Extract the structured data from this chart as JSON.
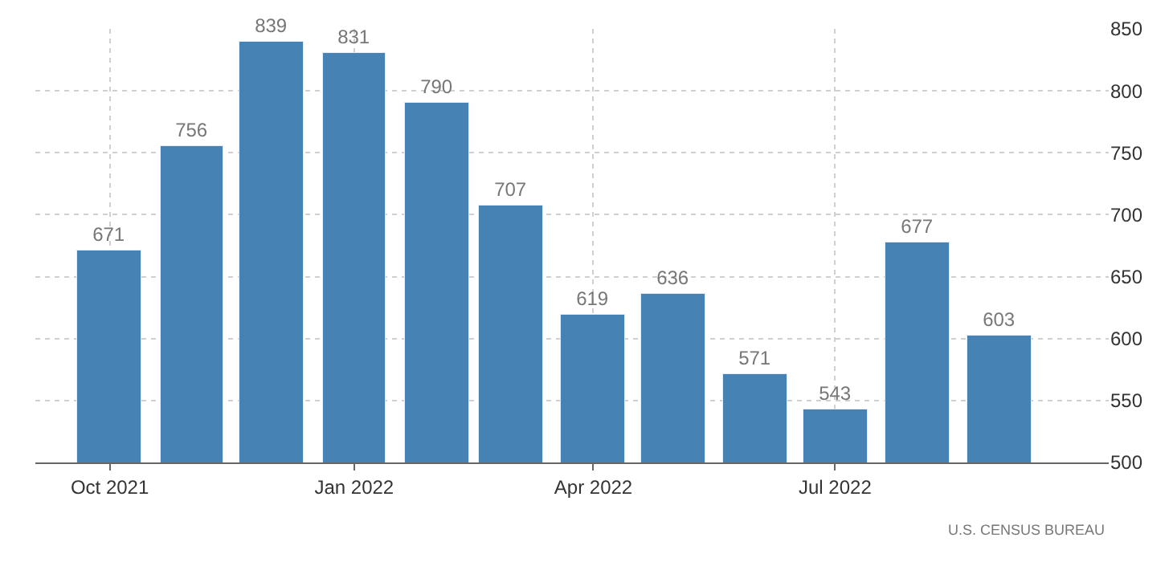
{
  "chart_data": {
    "type": "bar",
    "x": [
      "2021-10",
      "2021-11",
      "2021-12",
      "2022-01",
      "2022-02",
      "2022-03",
      "2022-04",
      "2022-05",
      "2022-06",
      "2022-07",
      "2022-08",
      "2022-09"
    ],
    "values": [
      671,
      756,
      839,
      831,
      790,
      707,
      619,
      636,
      571,
      543,
      677,
      603
    ],
    "color": "#4682b4",
    "data_labels": true,
    "xlim": [
      "2021-09-03",
      "2022-10-12"
    ],
    "xticks": [
      {
        "value": "2021-10",
        "label": "Oct 2021"
      },
      {
        "value": "2022-01",
        "label": "Jan 2022"
      },
      {
        "value": "2022-04",
        "label": "Apr 2022"
      },
      {
        "value": "2022-07",
        "label": "Jul 2022"
      }
    ],
    "ylim": [
      500,
      850
    ],
    "yticks": [
      500,
      550,
      600,
      650,
      700,
      750,
      800,
      850
    ],
    "grid": true,
    "legend": false,
    "annotations": [
      "U.S. CENSUS BUREAU"
    ]
  }
}
